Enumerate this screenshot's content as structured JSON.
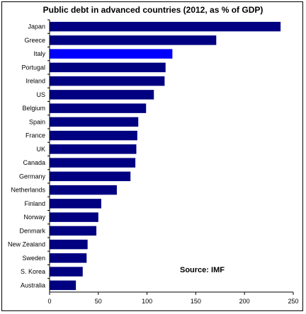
{
  "chart_data": {
    "type": "bar",
    "orientation": "horizontal",
    "title": "Public debt in advanced countries (2012, as % of GDP)",
    "categories": [
      "Japan",
      "Greece",
      "Italy",
      "Portugal",
      "Ireland",
      "US",
      "Belgium",
      "Spain",
      "France",
      "UK",
      "Canada",
      "Germany",
      "Netherlands",
      "Finland",
      "Norway",
      "Denmark",
      "New Zealand",
      "Sweden",
      "S. Korea",
      "Australia"
    ],
    "values": [
      237,
      171,
      126,
      119,
      118,
      107,
      99,
      91,
      90,
      89,
      88,
      83,
      69,
      53,
      50,
      48,
      39,
      38,
      34,
      27
    ],
    "highlight": "Italy",
    "bar_color": "#000080",
    "highlight_color": "#0000ff",
    "xlim": [
      0,
      250
    ],
    "xticks": [
      0,
      50,
      100,
      150,
      200,
      250
    ],
    "annotation": "Source: IMF",
    "grid": false,
    "legend": "none"
  }
}
